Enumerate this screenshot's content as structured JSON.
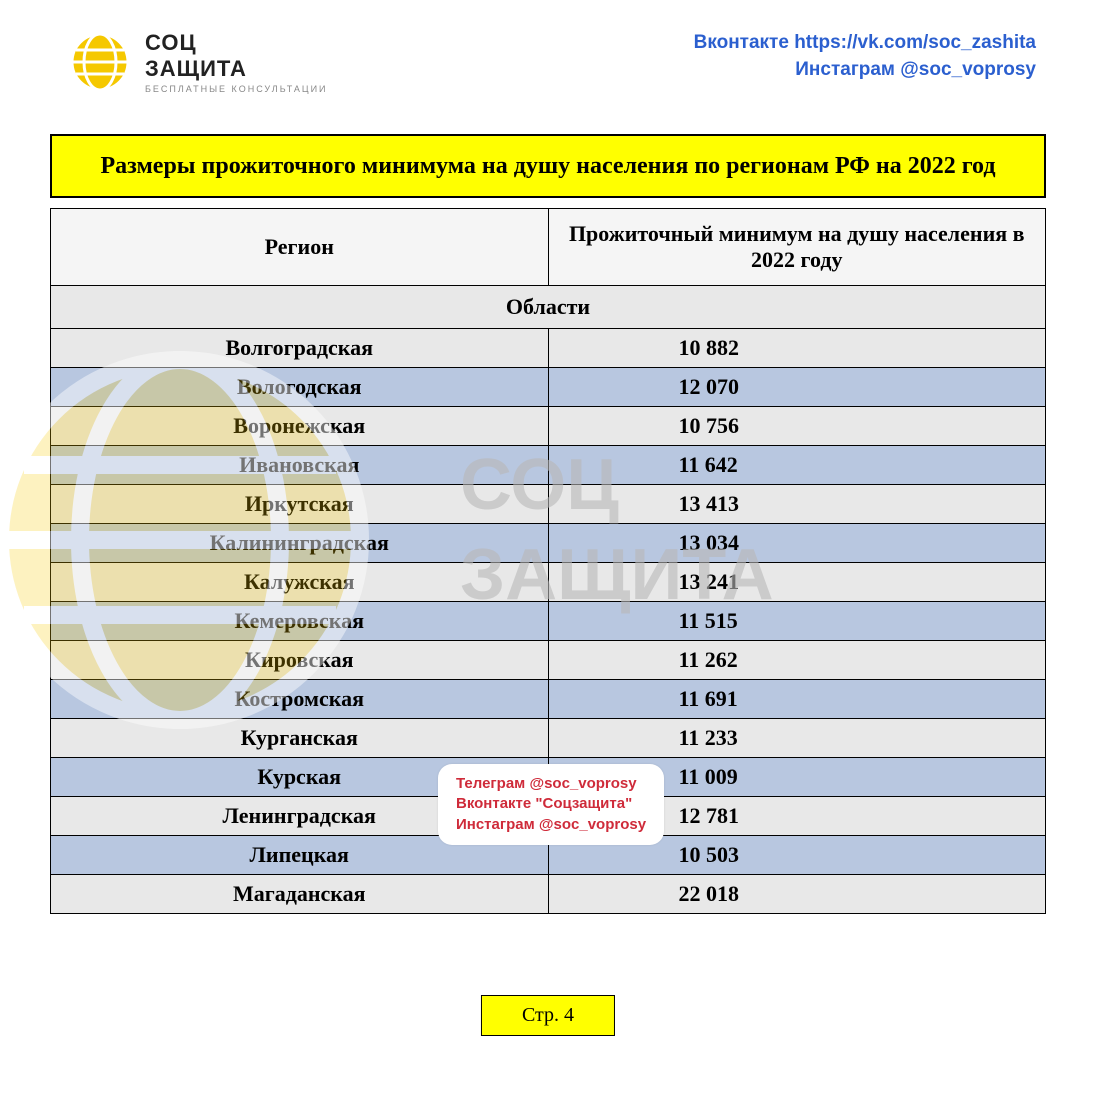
{
  "header": {
    "logo": {
      "line1": "СОЦ",
      "line2": "ЗАЩИТА",
      "sub": "БЕСПЛАТНЫЕ КОНСУЛЬТАЦИИ"
    },
    "social": {
      "vk": "Вконтакте https://vk.com/soc_zashita",
      "ig": "Инстаграм @soc_voprosy"
    }
  },
  "title": "Размеры прожиточного минимума на душу населения по регионам РФ на 2022 год",
  "table": {
    "type": "table",
    "columns": [
      "Регион",
      "Прожиточный минимум на душу населения в 2022 году"
    ],
    "section_label": "Области",
    "rows": [
      {
        "region": "Волгоградская",
        "value": "10 882",
        "bg": "gray"
      },
      {
        "region": "Вологодская",
        "value": "12 070",
        "bg": "blue"
      },
      {
        "region": "Воронежская",
        "value": "10 756",
        "bg": "gray"
      },
      {
        "region": "Ивановская",
        "value": "11 642",
        "bg": "blue"
      },
      {
        "region": "Иркутская",
        "value": "13 413",
        "bg": "gray"
      },
      {
        "region": "Калининградская",
        "value": "13 034",
        "bg": "blue"
      },
      {
        "region": "Калужская",
        "value": "13 241",
        "bg": "gray"
      },
      {
        "region": "Кемеровская",
        "value": "11 515",
        "bg": "blue"
      },
      {
        "region": "Кировская",
        "value": "11 262",
        "bg": "gray"
      },
      {
        "region": "Костромская",
        "value": "11 691",
        "bg": "blue"
      },
      {
        "region": "Курганская",
        "value": "11 233",
        "bg": "gray"
      },
      {
        "region": "Курская",
        "value": "11 009",
        "bg": "blue"
      },
      {
        "region": "Ленинградская",
        "value": "12 781",
        "bg": "gray"
      },
      {
        "region": "Липецкая",
        "value": "10 503",
        "bg": "blue"
      },
      {
        "region": "Магаданская",
        "value": "22 018",
        "bg": "gray"
      }
    ],
    "colors": {
      "gray_bg": "#e8e8e8",
      "blue_bg": "#b8c7e0",
      "border": "#000000",
      "title_bg": "#ffff00"
    }
  },
  "watermark": {
    "line1": "СОЦ",
    "line2": "ЗАЩИТА"
  },
  "callout": {
    "tg": "Телеграм @soc_voprosy",
    "vk": "Вконтакте \"Соцзащита\"",
    "ig": "Инстаграм @soc_voprosy"
  },
  "page_label": "Стр. 4"
}
